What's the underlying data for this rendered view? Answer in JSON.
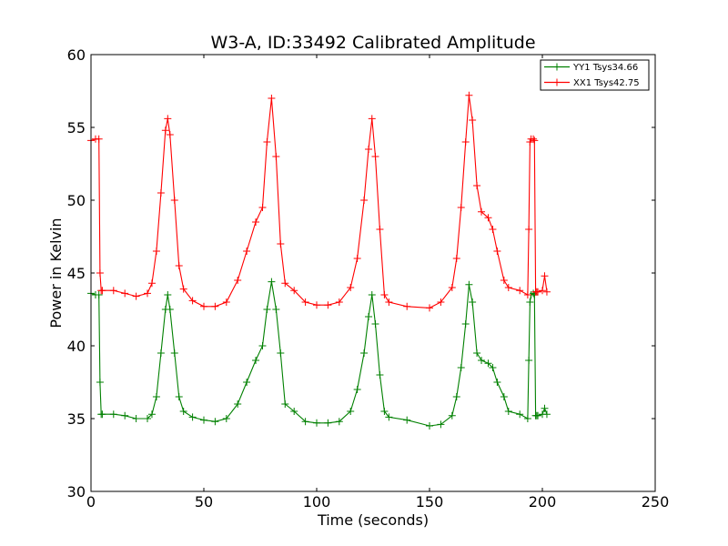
{
  "chart_data": {
    "type": "line",
    "title": "W3-A, ID:33492 Calibrated Amplitude",
    "xlabel": "Time (seconds)",
    "ylabel": "Power in Kelvin",
    "xlim": [
      0,
      250
    ],
    "ylim": [
      30,
      60
    ],
    "xticks": [
      "0",
      "50",
      "100",
      "150",
      "200",
      "250"
    ],
    "yticks": [
      "30",
      "35",
      "40",
      "45",
      "50",
      "55",
      "60"
    ],
    "grid": false,
    "legend_position": "top-right",
    "marker": "plus",
    "series": [
      {
        "name": "YY1 Tsys34.66",
        "color": "#008000",
        "x": [
          0,
          2,
          3.5,
          4,
          4.5,
          5,
          10,
          15,
          20,
          25,
          27,
          29,
          31,
          33,
          34,
          35,
          37,
          39,
          41,
          45,
          50,
          55,
          60,
          65,
          69,
          73,
          76,
          78,
          80,
          82,
          84,
          86,
          90,
          95,
          100,
          105,
          110,
          115,
          118,
          121,
          123,
          124.5,
          126,
          128,
          130,
          132,
          140,
          150,
          155,
          160,
          162,
          164,
          166,
          167.5,
          169,
          171,
          173,
          176,
          178,
          180,
          183,
          185,
          190,
          193.5,
          194,
          194.5,
          195,
          196,
          196.5,
          197,
          197.5,
          198,
          200,
          201,
          202
        ],
        "y": [
          43.6,
          43.5,
          43.5,
          37.5,
          35.3,
          35.3,
          35.3,
          35.2,
          35.0,
          35.0,
          35.3,
          36.5,
          39.5,
          42.5,
          43.5,
          42.5,
          39.5,
          36.5,
          35.5,
          35.1,
          34.9,
          34.8,
          35.0,
          36.0,
          37.5,
          39.0,
          40.0,
          42.5,
          44.4,
          42.5,
          39.5,
          36.0,
          35.5,
          34.8,
          34.7,
          34.7,
          34.8,
          35.5,
          37.0,
          39.5,
          42.0,
          43.5,
          41.5,
          38.0,
          35.5,
          35.1,
          34.9,
          34.5,
          34.6,
          35.2,
          36.5,
          38.5,
          41.5,
          44.2,
          43.0,
          39.5,
          39.0,
          38.8,
          38.5,
          37.5,
          36.5,
          35.5,
          35.3,
          35.0,
          39.0,
          43.0,
          43.5,
          43.6,
          43.5,
          35.2,
          35.2,
          35.2,
          35.3,
          35.7,
          35.3
        ]
      },
      {
        "name": "XX1 Tsys42.75",
        "color": "#ff0000",
        "x": [
          0,
          2,
          3.5,
          4,
          4.5,
          5,
          10,
          15,
          20,
          25,
          27,
          29,
          31,
          33,
          34,
          35,
          37,
          39,
          41,
          45,
          50,
          55,
          60,
          65,
          69,
          73,
          76,
          78,
          80,
          82,
          84,
          86,
          90,
          95,
          100,
          105,
          110,
          115,
          118,
          121,
          123,
          124.5,
          126,
          128,
          130,
          132,
          140,
          150,
          155,
          160,
          162,
          164,
          166,
          167.5,
          169,
          171,
          173,
          176,
          178,
          180,
          183,
          185,
          190,
          193.5,
          194,
          194.5,
          195,
          196,
          196.5,
          197,
          197.5,
          198,
          200,
          201,
          202
        ],
        "y": [
          54.1,
          54.2,
          54.2,
          45.0,
          43.8,
          43.8,
          43.8,
          43.6,
          43.4,
          43.6,
          44.3,
          46.5,
          50.5,
          54.8,
          55.6,
          54.5,
          50.0,
          45.5,
          43.9,
          43.1,
          42.7,
          42.7,
          43.0,
          44.5,
          46.5,
          48.5,
          49.5,
          54.0,
          57.0,
          53.0,
          47.0,
          44.3,
          43.8,
          43.0,
          42.8,
          42.8,
          43.0,
          44.0,
          46.0,
          50.0,
          53.5,
          55.6,
          53.0,
          48.0,
          43.5,
          43.0,
          42.7,
          42.6,
          43.0,
          44.0,
          46.0,
          49.5,
          54.0,
          57.2,
          55.5,
          51.0,
          49.2,
          48.8,
          48.0,
          46.5,
          44.5,
          44.0,
          43.8,
          43.5,
          48.0,
          54.0,
          54.2,
          54.2,
          54.1,
          43.7,
          43.7,
          43.7,
          43.8,
          44.8,
          43.7
        ]
      }
    ]
  }
}
